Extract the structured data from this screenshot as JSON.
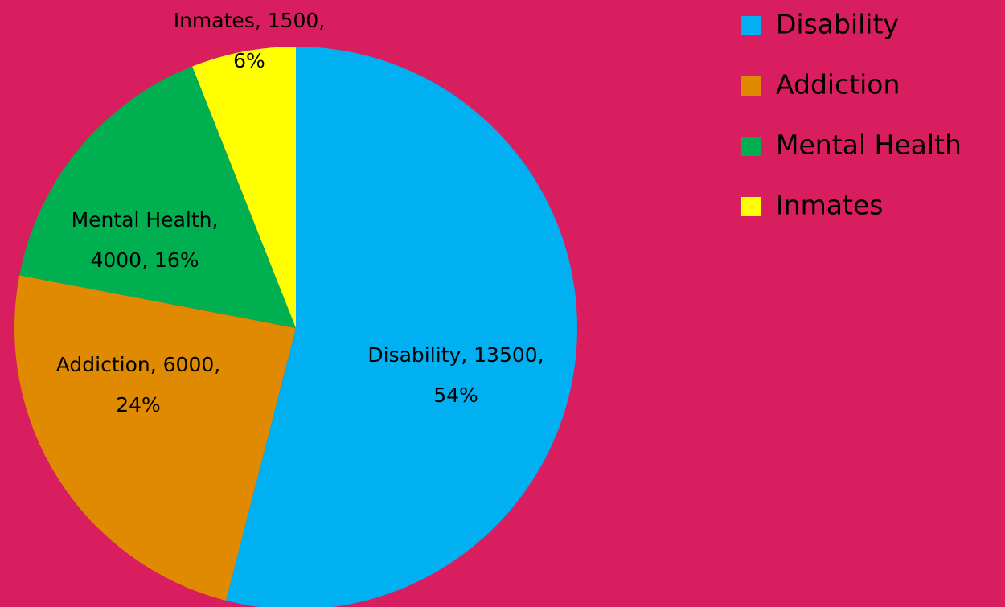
{
  "chart_data": {
    "type": "pie",
    "categories": [
      "Disability",
      "Addiction",
      "Mental Health",
      "Inmates"
    ],
    "values": [
      13500,
      6000,
      4000,
      1500
    ],
    "value_labels": [
      [
        "Disability, 13500,",
        "54%"
      ],
      [
        "Addiction, 6000,",
        "24%"
      ],
      [
        "Mental Health,",
        "4000, 16%"
      ],
      [
        "Inmates, 1500,",
        "6%"
      ]
    ],
    "colors": [
      "#00b0f0",
      "#df8a00",
      "#00b050",
      "#ffff00"
    ],
    "legend": "right"
  }
}
